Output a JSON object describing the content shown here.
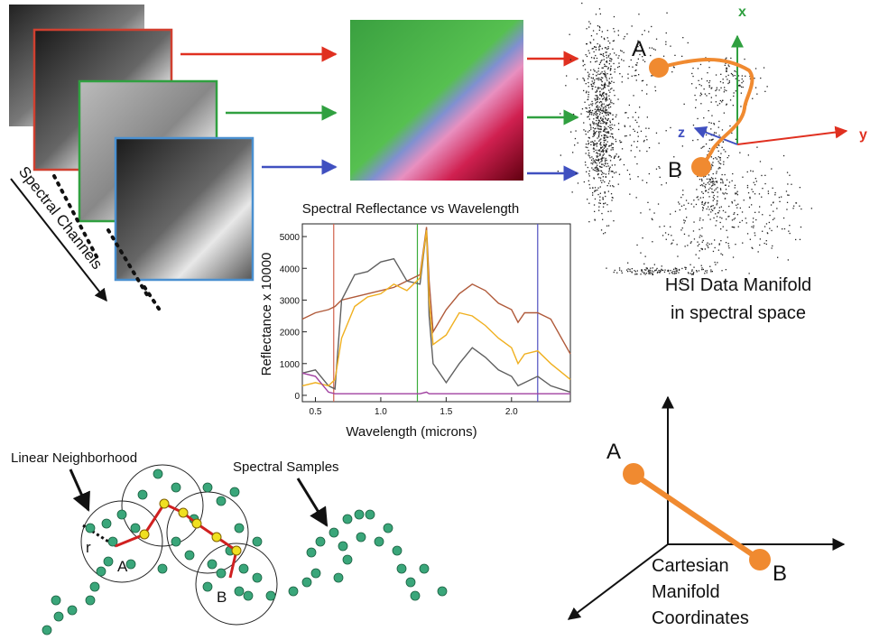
{
  "labels": {
    "spectral_channels": "Spectral Channels",
    "axis_x": "x",
    "axis_y": "y",
    "axis_z": "z",
    "manifold_a": "A",
    "manifold_b": "B",
    "manifold_caption_1": "HSI Data Manifold",
    "manifold_caption_2": "in spectral space",
    "linear_neighborhood": "Linear Neighborhood",
    "spectral_samples": "Spectral Samples",
    "radius": "r",
    "neigh_a": "A",
    "neigh_b": "B",
    "cart_a": "A",
    "cart_b": "B",
    "cart_caption_1": "Cartesian",
    "cart_caption_2": "Manifold",
    "cart_caption_3": "Coordinates"
  },
  "chart_data": {
    "type": "line",
    "title": "Spectral Reflectance vs Wavelength",
    "x_label": "Wavelength (microns)",
    "y_label": "Reflectance x 10000",
    "xlim": [
      0.4,
      2.45
    ],
    "ylim": [
      -200,
      5400
    ],
    "xticks": [
      0.5,
      {
        "value": 1.0,
        "label": "1.0"
      },
      1.5,
      {
        "value": 2.0,
        "label": "2.0"
      }
    ],
    "yticks": [
      0,
      1000,
      2000,
      3000,
      4000,
      5000
    ],
    "x": [
      0.4,
      0.5,
      0.6,
      0.65,
      0.7,
      0.8,
      0.9,
      1.0,
      1.1,
      1.2,
      1.3,
      1.35,
      1.37,
      1.4,
      1.5,
      1.6,
      1.7,
      1.8,
      1.9,
      2.0,
      2.05,
      2.1,
      2.2,
      2.3,
      2.45
    ],
    "band_lines": [
      {
        "x": 0.64,
        "color": "#d0604a"
      },
      {
        "x": 1.28,
        "color": "#3cad3c"
      },
      {
        "x": 2.2,
        "color": "#5050c0"
      }
    ],
    "series": [
      {
        "color": "#b05a3a",
        "values": [
          2400,
          2600,
          2700,
          2800,
          3000,
          3100,
          3200,
          3300,
          3400,
          3600,
          3800,
          5300,
          3600,
          2000,
          2700,
          3200,
          3500,
          3300,
          2900,
          2700,
          2300,
          2600,
          2600,
          2400,
          1300
        ]
      },
      {
        "color": "#606060",
        "values": [
          700,
          800,
          300,
          200,
          3000,
          3800,
          3900,
          4200,
          4300,
          3600,
          3500,
          5200,
          2500,
          1000,
          400,
          1000,
          1500,
          1200,
          800,
          600,
          300,
          400,
          600,
          300,
          100
        ]
      },
      {
        "color": "#f0b020",
        "values": [
          300,
          400,
          300,
          500,
          1800,
          2800,
          3100,
          3200,
          3500,
          3300,
          3700,
          5200,
          3000,
          1600,
          1900,
          2600,
          2500,
          2200,
          1800,
          1500,
          1000,
          1300,
          1400,
          1000,
          500
        ]
      },
      {
        "color": "#a040a0",
        "values": [
          700,
          600,
          100,
          50,
          50,
          50,
          50,
          50,
          50,
          50,
          50,
          100,
          50,
          50,
          50,
          50,
          50,
          50,
          50,
          50,
          50,
          50,
          50,
          50,
          50
        ]
      }
    ]
  }
}
